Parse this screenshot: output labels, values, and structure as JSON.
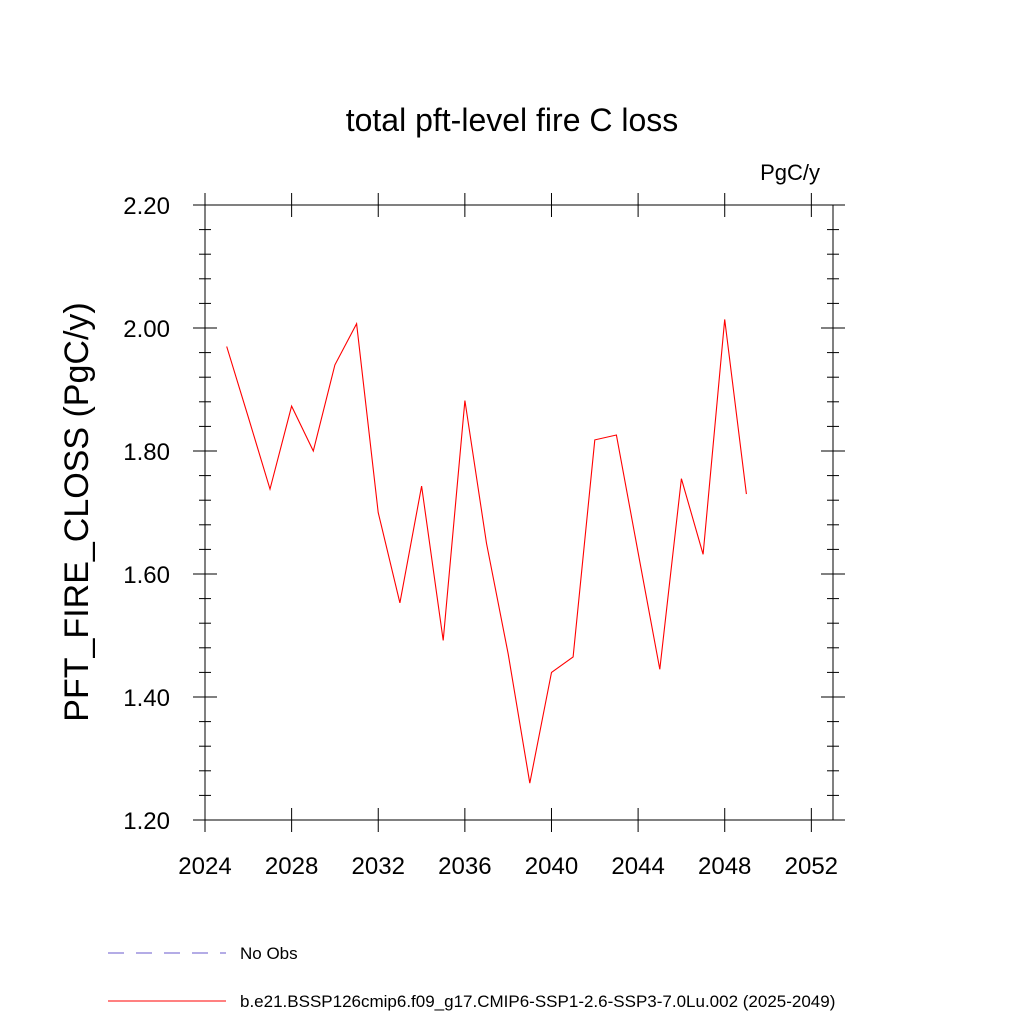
{
  "chart_data": {
    "type": "line",
    "title": "total pft-level fire C loss",
    "units": "PgC/y",
    "ylabel": "PFT_FIRE_CLOSS  (PgC/y)",
    "xlabel": "",
    "xlim": [
      2024,
      2053
    ],
    "ylim": [
      1.2,
      2.2
    ],
    "x_ticks": [
      2024,
      2028,
      2032,
      2036,
      2040,
      2044,
      2048,
      2052
    ],
    "x_tick_labels": [
      "2024",
      "2028",
      "2032",
      "2036",
      "2040",
      "2044",
      "2048",
      "2052"
    ],
    "y_ticks": [
      1.2,
      1.4,
      1.6,
      1.8,
      2.0,
      2.2
    ],
    "y_tick_labels": [
      "1.20",
      "1.40",
      "1.60",
      "1.80",
      "2.00",
      "2.20"
    ],
    "grid": false,
    "legend_position": "bottom-left",
    "series": [
      {
        "name": "b.e21.BSSP126cmip6.f09_g17.CMIP6-SSP1-2.6-SSP3-7.0Lu.002 (2025-2049)",
        "color": "#ff0000",
        "style": "solid",
        "x": [
          2025,
          2026,
          2027,
          2028,
          2029,
          2030,
          2031,
          2032,
          2033,
          2034,
          2035,
          2036,
          2037,
          2038,
          2039,
          2040,
          2041,
          2042,
          2043,
          2044,
          2045,
          2046,
          2047,
          2048,
          2049
        ],
        "values": [
          1.97,
          1.855,
          1.738,
          1.873,
          1.8,
          1.94,
          2.007,
          1.7,
          1.553,
          1.743,
          1.492,
          1.882,
          1.65,
          1.47,
          1.26,
          1.44,
          1.465,
          1.818,
          1.826,
          1.635,
          1.445,
          1.755,
          1.632,
          2.014,
          1.73
        ]
      }
    ],
    "legend": [
      {
        "label": "No Obs",
        "color": "#6a5acd",
        "style": "dashed"
      },
      {
        "label": "b.e21.BSSP126cmip6.f09_g17.CMIP6-SSP1-2.6-SSP3-7.0Lu.002 (2025-2049)",
        "color": "#ff0000",
        "style": "solid"
      }
    ]
  }
}
